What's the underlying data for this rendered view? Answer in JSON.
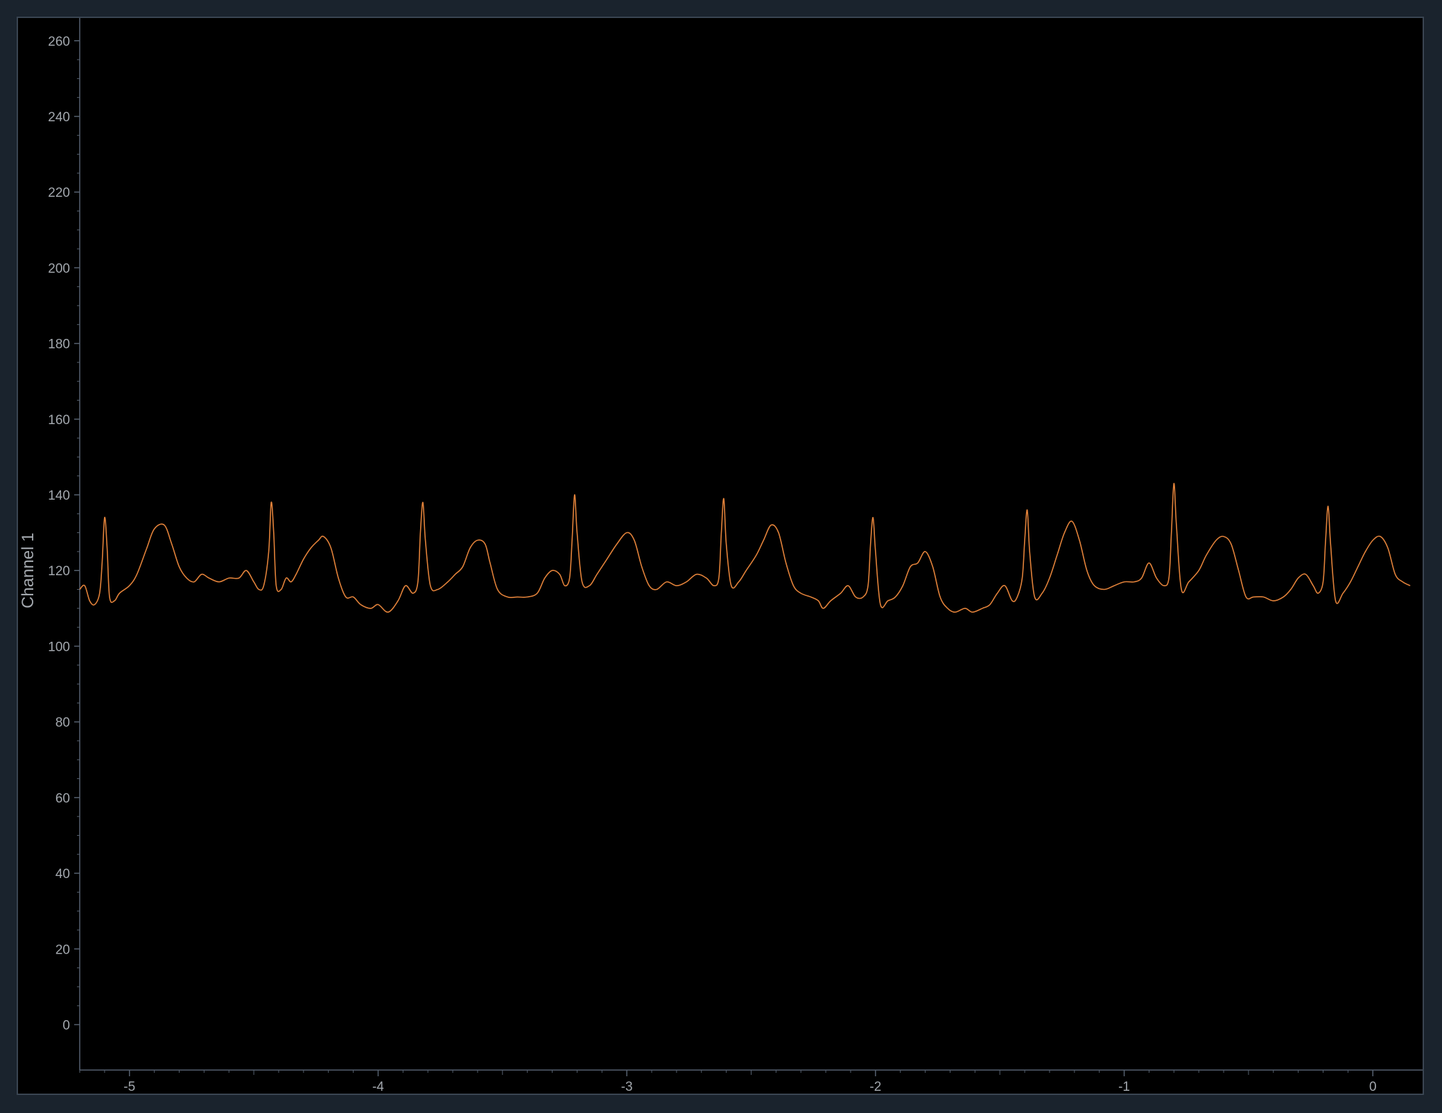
{
  "chart_data": {
    "type": "line",
    "ylabel": "Channel 1",
    "xlabel": "",
    "xlim": [
      -5.2,
      0.2
    ],
    "ylim": [
      -12,
      266
    ],
    "grid": false,
    "y_ticks": [
      0,
      20,
      40,
      60,
      80,
      100,
      120,
      140,
      160,
      180,
      200,
      220,
      240,
      260
    ],
    "x_ticks": [
      -5,
      -4,
      -3,
      -2,
      -1,
      0
    ],
    "x_tick_labels": [
      "-5",
      "-4",
      "-3",
      "-2",
      "-1",
      "0"
    ],
    "series": [
      {
        "color": "#e2823a",
        "points": [
          [
            -5.2,
            115
          ],
          [
            -5.18,
            116
          ],
          [
            -5.16,
            112
          ],
          [
            -5.14,
            111
          ],
          [
            -5.12,
            114
          ],
          [
            -5.11,
            122
          ],
          [
            -5.1,
            134
          ],
          [
            -5.09,
            126
          ],
          [
            -5.08,
            113
          ],
          [
            -5.06,
            112
          ],
          [
            -5.04,
            114
          ],
          [
            -5.0,
            116
          ],
          [
            -4.97,
            119
          ],
          [
            -4.93,
            126
          ],
          [
            -4.9,
            131
          ],
          [
            -4.86,
            132
          ],
          [
            -4.83,
            127
          ],
          [
            -4.8,
            121
          ],
          [
            -4.77,
            118
          ],
          [
            -4.74,
            117
          ],
          [
            -4.71,
            119
          ],
          [
            -4.68,
            118
          ],
          [
            -4.64,
            117
          ],
          [
            -4.6,
            118
          ],
          [
            -4.56,
            118
          ],
          [
            -4.53,
            120
          ],
          [
            -4.5,
            117
          ],
          [
            -4.48,
            115
          ],
          [
            -4.46,
            116
          ],
          [
            -4.44,
            125
          ],
          [
            -4.43,
            138
          ],
          [
            -4.42,
            130
          ],
          [
            -4.41,
            116
          ],
          [
            -4.39,
            115
          ],
          [
            -4.37,
            118
          ],
          [
            -4.35,
            117
          ],
          [
            -4.33,
            119
          ],
          [
            -4.3,
            123
          ],
          [
            -4.27,
            126
          ],
          [
            -4.24,
            128
          ],
          [
            -4.22,
            129
          ],
          [
            -4.19,
            126
          ],
          [
            -4.16,
            118
          ],
          [
            -4.13,
            113
          ],
          [
            -4.1,
            113
          ],
          [
            -4.07,
            111
          ],
          [
            -4.03,
            110
          ],
          [
            -4.0,
            111
          ],
          [
            -3.96,
            109
          ],
          [
            -3.92,
            112
          ],
          [
            -3.89,
            116
          ],
          [
            -3.86,
            114
          ],
          [
            -3.84,
            117
          ],
          [
            -3.83,
            130
          ],
          [
            -3.82,
            138
          ],
          [
            -3.81,
            128
          ],
          [
            -3.79,
            116
          ],
          [
            -3.76,
            115
          ],
          [
            -3.72,
            117
          ],
          [
            -3.69,
            119
          ],
          [
            -3.66,
            121
          ],
          [
            -3.63,
            126
          ],
          [
            -3.6,
            128
          ],
          [
            -3.57,
            127
          ],
          [
            -3.55,
            122
          ],
          [
            -3.52,
            115
          ],
          [
            -3.48,
            113
          ],
          [
            -3.44,
            113
          ],
          [
            -3.4,
            113
          ],
          [
            -3.36,
            114
          ],
          [
            -3.33,
            118
          ],
          [
            -3.3,
            120
          ],
          [
            -3.27,
            119
          ],
          [
            -3.25,
            116
          ],
          [
            -3.23,
            118
          ],
          [
            -3.22,
            128
          ],
          [
            -3.21,
            140
          ],
          [
            -3.2,
            130
          ],
          [
            -3.18,
            117
          ],
          [
            -3.15,
            116
          ],
          [
            -3.12,
            119
          ],
          [
            -3.08,
            123
          ],
          [
            -3.04,
            127
          ],
          [
            -3.0,
            130
          ],
          [
            -2.97,
            128
          ],
          [
            -2.94,
            121
          ],
          [
            -2.91,
            116
          ],
          [
            -2.88,
            115
          ],
          [
            -2.84,
            117
          ],
          [
            -2.8,
            116
          ],
          [
            -2.76,
            117
          ],
          [
            -2.72,
            119
          ],
          [
            -2.68,
            118
          ],
          [
            -2.65,
            116
          ],
          [
            -2.63,
            118
          ],
          [
            -2.62,
            130
          ],
          [
            -2.61,
            139
          ],
          [
            -2.6,
            127
          ],
          [
            -2.58,
            116
          ],
          [
            -2.55,
            117
          ],
          [
            -2.52,
            120
          ],
          [
            -2.48,
            124
          ],
          [
            -2.45,
            128
          ],
          [
            -2.42,
            132
          ],
          [
            -2.39,
            130
          ],
          [
            -2.36,
            122
          ],
          [
            -2.33,
            116
          ],
          [
            -2.3,
            114
          ],
          [
            -2.26,
            113
          ],
          [
            -2.23,
            112
          ],
          [
            -2.21,
            110
          ],
          [
            -2.18,
            112
          ],
          [
            -2.14,
            114
          ],
          [
            -2.11,
            116
          ],
          [
            -2.08,
            113
          ],
          [
            -2.05,
            113
          ],
          [
            -2.03,
            116
          ],
          [
            -2.02,
            127
          ],
          [
            -2.01,
            134
          ],
          [
            -2.0,
            125
          ],
          [
            -1.98,
            111
          ],
          [
            -1.95,
            112
          ],
          [
            -1.92,
            113
          ],
          [
            -1.89,
            116
          ],
          [
            -1.86,
            121
          ],
          [
            -1.83,
            122
          ],
          [
            -1.8,
            125
          ],
          [
            -1.77,
            121
          ],
          [
            -1.74,
            113
          ],
          [
            -1.71,
            110
          ],
          [
            -1.68,
            109
          ],
          [
            -1.64,
            110
          ],
          [
            -1.61,
            109
          ],
          [
            -1.57,
            110
          ],
          [
            -1.54,
            111
          ],
          [
            -1.51,
            114
          ],
          [
            -1.48,
            116
          ],
          [
            -1.45,
            112
          ],
          [
            -1.43,
            113
          ],
          [
            -1.41,
            118
          ],
          [
            -1.4,
            128
          ],
          [
            -1.39,
            136
          ],
          [
            -1.38,
            125
          ],
          [
            -1.36,
            113
          ],
          [
            -1.33,
            114
          ],
          [
            -1.3,
            118
          ],
          [
            -1.27,
            124
          ],
          [
            -1.24,
            130
          ],
          [
            -1.21,
            133
          ],
          [
            -1.18,
            128
          ],
          [
            -1.15,
            120
          ],
          [
            -1.12,
            116
          ],
          [
            -1.08,
            115
          ],
          [
            -1.04,
            116
          ],
          [
            -1.0,
            117
          ],
          [
            -0.96,
            117
          ],
          [
            -0.93,
            118
          ],
          [
            -0.9,
            122
          ],
          [
            -0.87,
            118
          ],
          [
            -0.84,
            116
          ],
          [
            -0.82,
            118
          ],
          [
            -0.81,
            130
          ],
          [
            -0.8,
            143
          ],
          [
            -0.79,
            132
          ],
          [
            -0.77,
            115
          ],
          [
            -0.74,
            117
          ],
          [
            -0.7,
            120
          ],
          [
            -0.67,
            124
          ],
          [
            -0.63,
            128
          ],
          [
            -0.6,
            129
          ],
          [
            -0.57,
            127
          ],
          [
            -0.54,
            120
          ],
          [
            -0.51,
            113
          ],
          [
            -0.48,
            113
          ],
          [
            -0.44,
            113
          ],
          [
            -0.4,
            112
          ],
          [
            -0.36,
            113
          ],
          [
            -0.33,
            115
          ],
          [
            -0.3,
            118
          ],
          [
            -0.27,
            119
          ],
          [
            -0.24,
            116
          ],
          [
            -0.22,
            114
          ],
          [
            -0.2,
            117
          ],
          [
            -0.19,
            128
          ],
          [
            -0.18,
            137
          ],
          [
            -0.17,
            127
          ],
          [
            -0.15,
            112
          ],
          [
            -0.12,
            114
          ],
          [
            -0.09,
            117
          ],
          [
            -0.06,
            121
          ],
          [
            -0.03,
            125
          ],
          [
            0.0,
            128
          ],
          [
            0.03,
            129
          ],
          [
            0.06,
            126
          ],
          [
            0.09,
            119
          ],
          [
            0.12,
            117
          ],
          [
            0.15,
            116
          ]
        ]
      }
    ]
  }
}
